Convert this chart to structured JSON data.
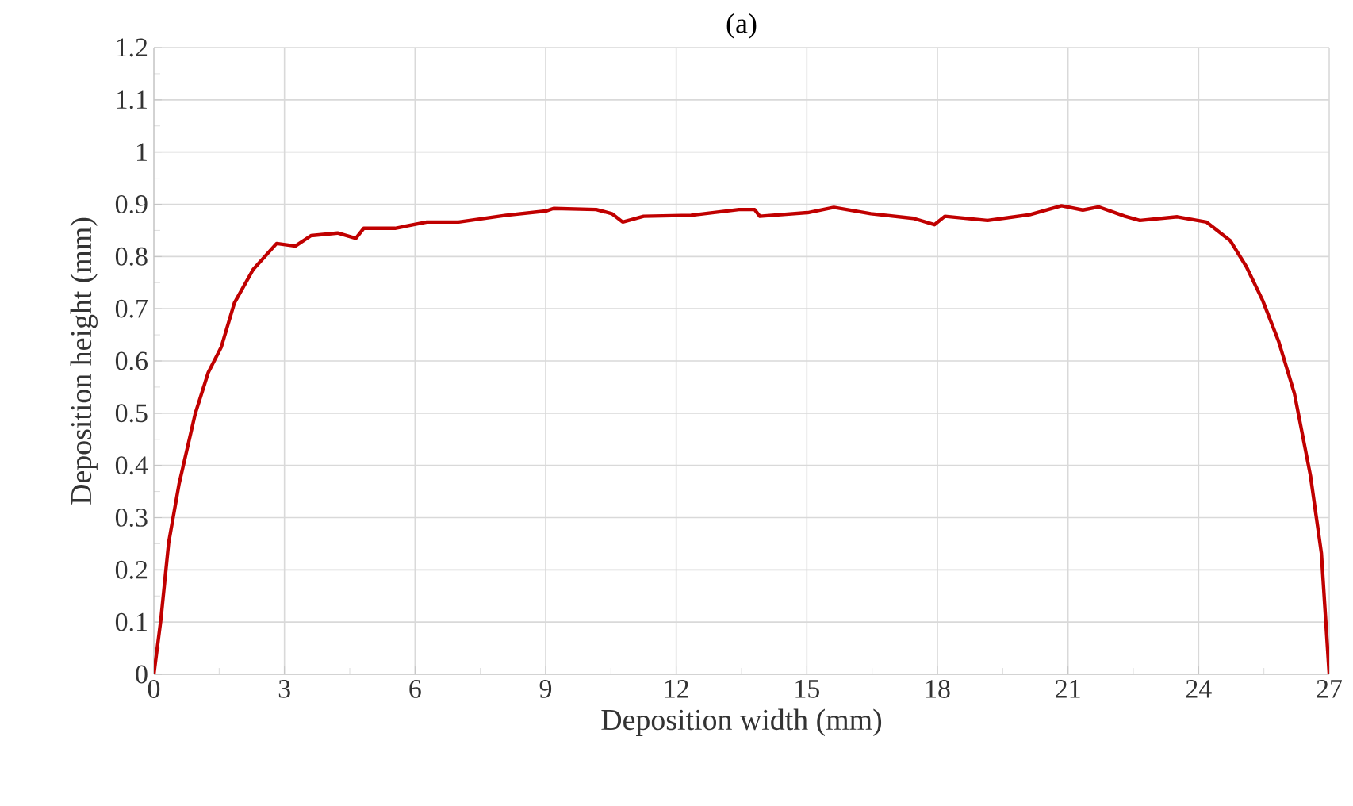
{
  "chart_data": {
    "type": "line",
    "title": "(a)",
    "xlabel": "Deposition width (mm)",
    "ylabel": "Deposition height (mm)",
    "x": [
      0,
      0.16,
      0.34,
      0.58,
      0.95,
      1.25,
      1.55,
      1.85,
      2.28,
      2.82,
      3.25,
      3.61,
      4.22,
      4.64,
      4.82,
      5.54,
      6.27,
      7.0,
      8.09,
      9.0,
      9.18,
      10.16,
      10.52,
      10.77,
      11.25,
      12.34,
      13.44,
      13.8,
      13.92,
      15.02,
      15.62,
      16.47,
      17.45,
      17.93,
      18.17,
      19.15,
      20.12,
      20.85,
      21.34,
      21.7,
      22.31,
      22.65,
      23.51,
      24.18,
      24.73,
      25.1,
      25.47,
      25.84,
      26.2,
      26.57,
      26.82,
      27.0
    ],
    "values": [
      0,
      0.104,
      0.252,
      0.365,
      0.499,
      0.578,
      0.627,
      0.711,
      0.775,
      0.825,
      0.82,
      0.84,
      0.845,
      0.835,
      0.854,
      0.854,
      0.866,
      0.866,
      0.879,
      0.887,
      0.892,
      0.89,
      0.882,
      0.866,
      0.877,
      0.879,
      0.89,
      0.89,
      0.877,
      0.884,
      0.894,
      0.882,
      0.873,
      0.861,
      0.877,
      0.869,
      0.88,
      0.897,
      0.889,
      0.895,
      0.877,
      0.869,
      0.876,
      0.866,
      0.83,
      0.78,
      0.716,
      0.637,
      0.538,
      0.38,
      0.232,
      0
    ],
    "color": "#c00000",
    "xlim": [
      0,
      27
    ],
    "xticks": [
      0,
      3,
      6,
      9,
      12,
      15,
      18,
      21,
      24,
      27
    ],
    "ylim": [
      0,
      1.2
    ],
    "yticks": [
      0,
      0.1,
      0.2,
      0.3,
      0.4,
      0.5,
      0.6,
      0.7,
      0.8,
      0.9,
      1,
      1.1,
      1.2
    ],
    "grid": true
  }
}
